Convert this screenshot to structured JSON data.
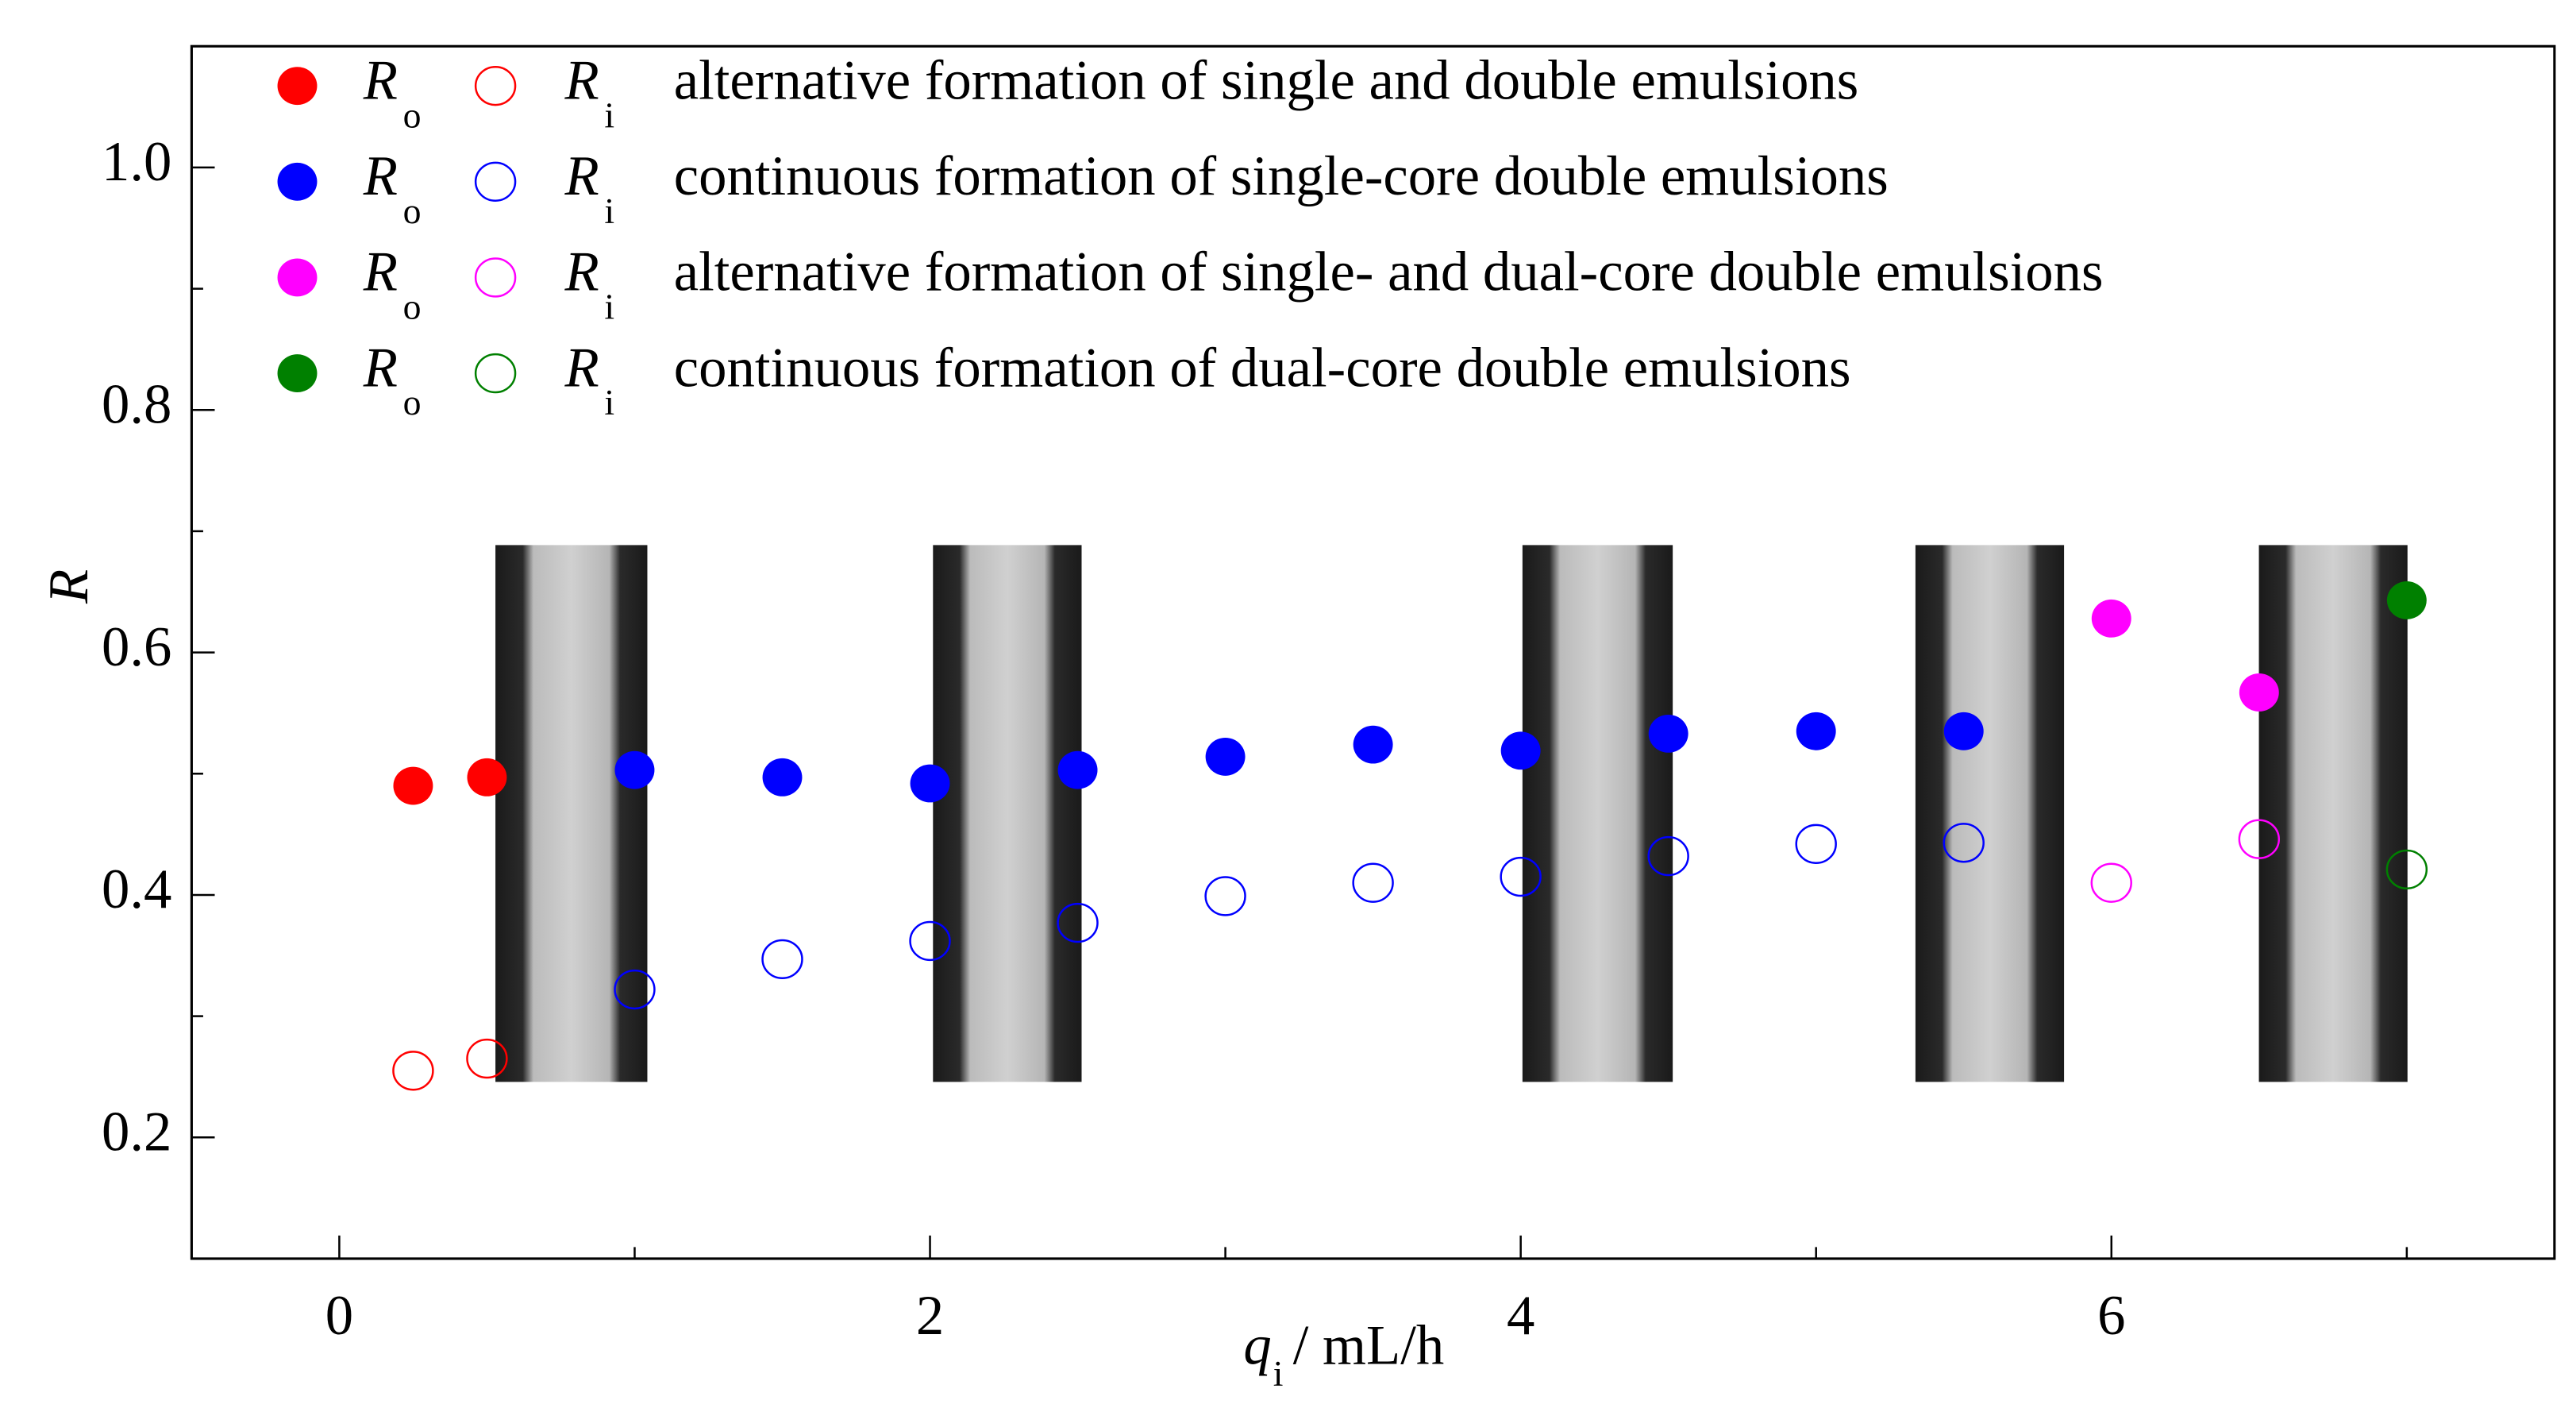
{
  "chart_data": {
    "type": "scatter",
    "x_label": {
      "symbol": "q",
      "subscript": "i",
      "unit": "/ mL/h"
    },
    "y_label": "R",
    "xlim": [
      -0.5,
      7.5
    ],
    "xticks": [
      0,
      2,
      4,
      6
    ],
    "xminorticks": [
      1,
      3,
      5,
      7
    ],
    "ylim": [
      0.1,
      1.1
    ],
    "yticks": [
      0.2,
      0.4,
      0.6,
      0.8,
      {
        "value": 1,
        "label": "1.0"
      }
    ],
    "yminorticks": [
      0.3,
      0.5,
      0.7,
      0.9
    ],
    "legend_symbols": {
      "outer": {
        "symbol": "R",
        "subscript": "o"
      },
      "inner": {
        "symbol": "R",
        "subscript": "i"
      }
    },
    "groups": [
      {
        "name": "alternative formation of single and double emulsions",
        "color": "#ff0000",
        "outer": {
          "x": [
            0.25,
            0.5
          ],
          "values": [
            0.49,
            0.497
          ]
        },
        "inner": {
          "x": [
            0.25,
            0.5
          ],
          "values": [
            0.255,
            0.265
          ]
        }
      },
      {
        "name": "continuous formation of single-core double emulsions",
        "color": "#0000ff",
        "outer": {
          "x": [
            1,
            1.5,
            2,
            2.5,
            3,
            3.5,
            4,
            4.5,
            5,
            5.5
          ],
          "values": [
            0.503,
            0.497,
            0.492,
            0.503,
            0.514,
            0.524,
            0.519,
            0.533,
            0.535,
            0.535
          ]
        },
        "inner": {
          "x": [
            1,
            1.5,
            2,
            2.5,
            3,
            3.5,
            4,
            4.5,
            5,
            5.5
          ],
          "values": [
            0.322,
            0.347,
            0.362,
            0.377,
            0.399,
            0.41,
            0.415,
            0.432,
            0.442,
            0.443
          ]
        }
      },
      {
        "name": "alternative formation of single- and dual-core double emulsions",
        "color": "#ff00ff",
        "outer": {
          "x": [
            6,
            6.5
          ],
          "values": [
            0.628,
            0.567
          ]
        },
        "inner": {
          "x": [
            6,
            6.5
          ],
          "values": [
            0.41,
            0.446
          ]
        }
      },
      {
        "name": "continuous formation of dual-core double emulsions",
        "color": "#008000",
        "outer": {
          "x": [
            7
          ],
          "values": [
            0.643
          ]
        },
        "inner": {
          "x": [
            7
          ],
          "values": [
            0.421
          ]
        }
      }
    ]
  }
}
